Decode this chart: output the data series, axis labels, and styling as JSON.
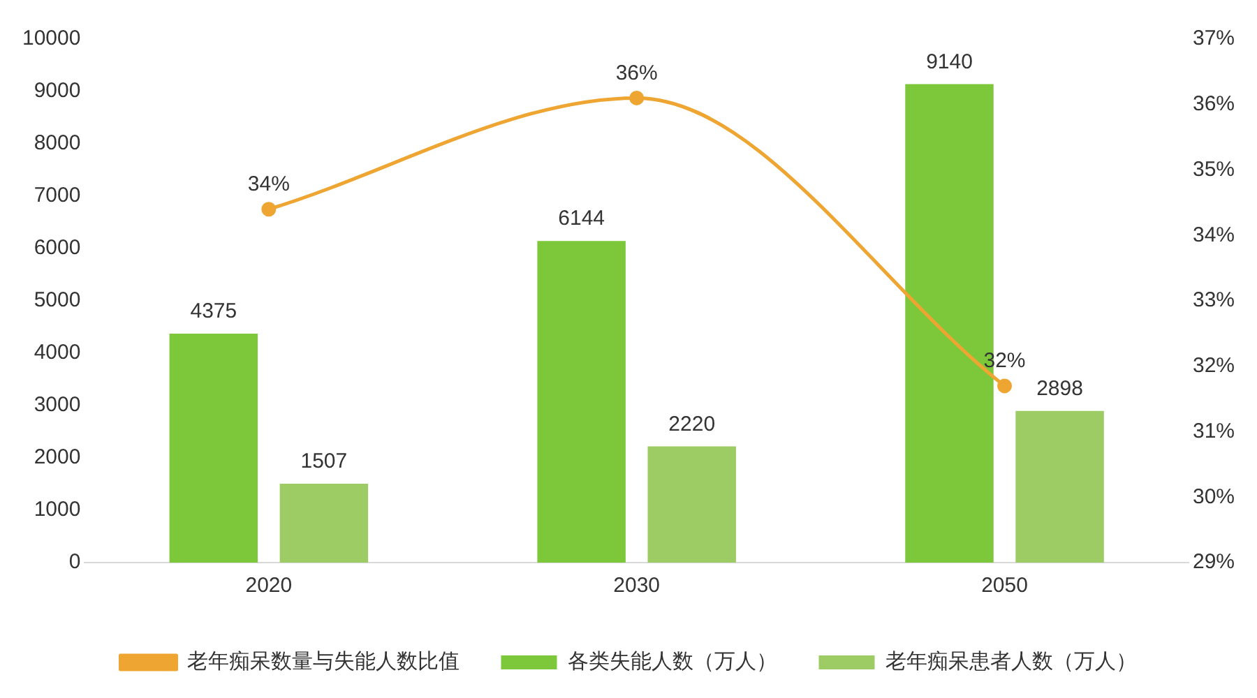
{
  "chart_data": {
    "type": "bar",
    "categories": [
      "2020",
      "2030",
      "2050"
    ],
    "series": [
      {
        "name": "各类失能人数（万人）",
        "color": "#7cc83a",
        "values": [
          4375,
          6144,
          9140
        ],
        "value_labels": [
          "4375",
          "6144",
          "9140"
        ]
      },
      {
        "name": "老年痴呆患者人数（万人）",
        "color": "#9dcb64",
        "values": [
          1507,
          2220,
          2898
        ],
        "value_labels": [
          "1507",
          "2220",
          "2898"
        ]
      },
      {
        "name": "老年痴呆数量与失能人数比值",
        "type": "line",
        "axis": "y2",
        "color": "#eea531",
        "values": [
          34.4,
          36.1,
          31.7
        ],
        "value_labels": [
          "34%",
          "36%",
          "32%"
        ]
      }
    ],
    "ylim": [
      0,
      10000
    ],
    "yticks": [
      0,
      1000,
      2000,
      3000,
      4000,
      5000,
      6000,
      7000,
      8000,
      9000,
      10000
    ],
    "y2lim": [
      29,
      37
    ],
    "y2ticks": [
      {
        "value": 29,
        "label": "29%"
      },
      {
        "value": 30,
        "label": "30%"
      },
      {
        "value": 31,
        "label": "31%"
      },
      {
        "value": 32,
        "label": "32%"
      },
      {
        "value": 33,
        "label": "33%"
      },
      {
        "value": 34,
        "label": "34%"
      },
      {
        "value": 35,
        "label": "35%"
      },
      {
        "value": 36,
        "label": "36%"
      },
      {
        "value": 37,
        "label": "37%"
      }
    ],
    "grid": false,
    "legend": "bottom",
    "marker": "circle",
    "line_style": "solid"
  }
}
